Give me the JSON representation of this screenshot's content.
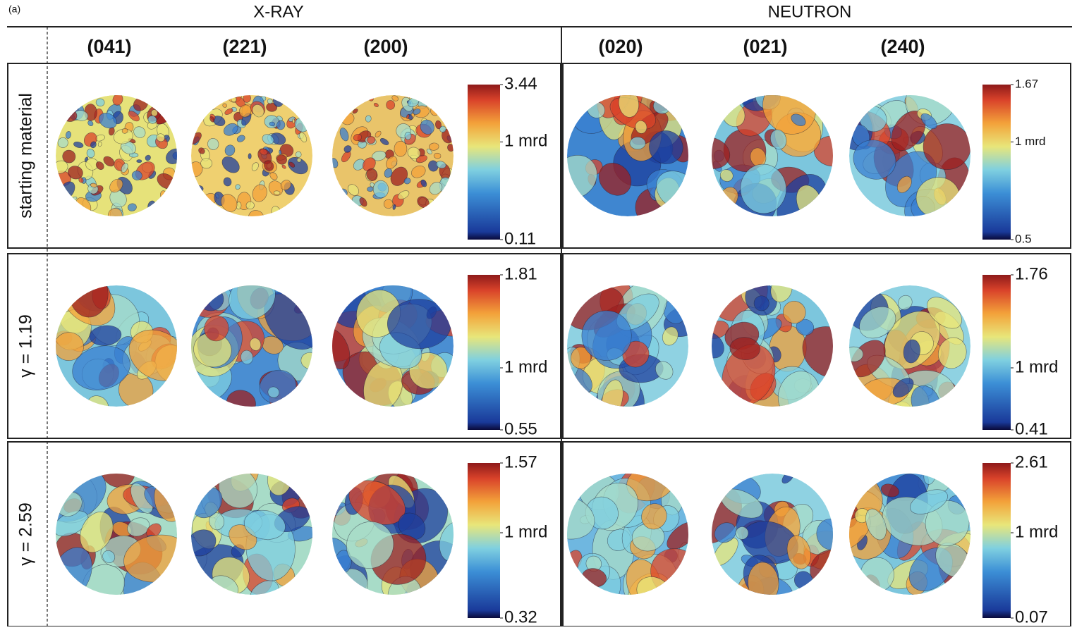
{
  "panel_label": "(a)",
  "groups": [
    {
      "title": "X-RAY",
      "planes": [
        "(041)",
        "(221)",
        "(200)"
      ]
    },
    {
      "title": "NEUTRON",
      "planes": [
        "(020)",
        "(021)",
        "(240)"
      ]
    }
  ],
  "rows": [
    {
      "label": "starting material",
      "scales": [
        {
          "max": "3.44",
          "mid": "1 mrd",
          "min": "0.11"
        },
        {
          "max": "1.67",
          "mid": "1 mrd",
          "min": "0.5"
        }
      ]
    },
    {
      "label": "γ = 1.19",
      "scales": [
        {
          "max": "1.81",
          "mid": "1 mrd",
          "min": "0.55"
        },
        {
          "max": "1.76",
          "mid": "1 mrd",
          "min": "0.41"
        }
      ]
    },
    {
      "label": "γ = 2.59",
      "scales": [
        {
          "max": "1.57",
          "mid": "1 mrd",
          "min": "0.32"
        },
        {
          "max": "2.61",
          "mid": "1 mrd",
          "min": "0.07"
        }
      ]
    }
  ]
}
